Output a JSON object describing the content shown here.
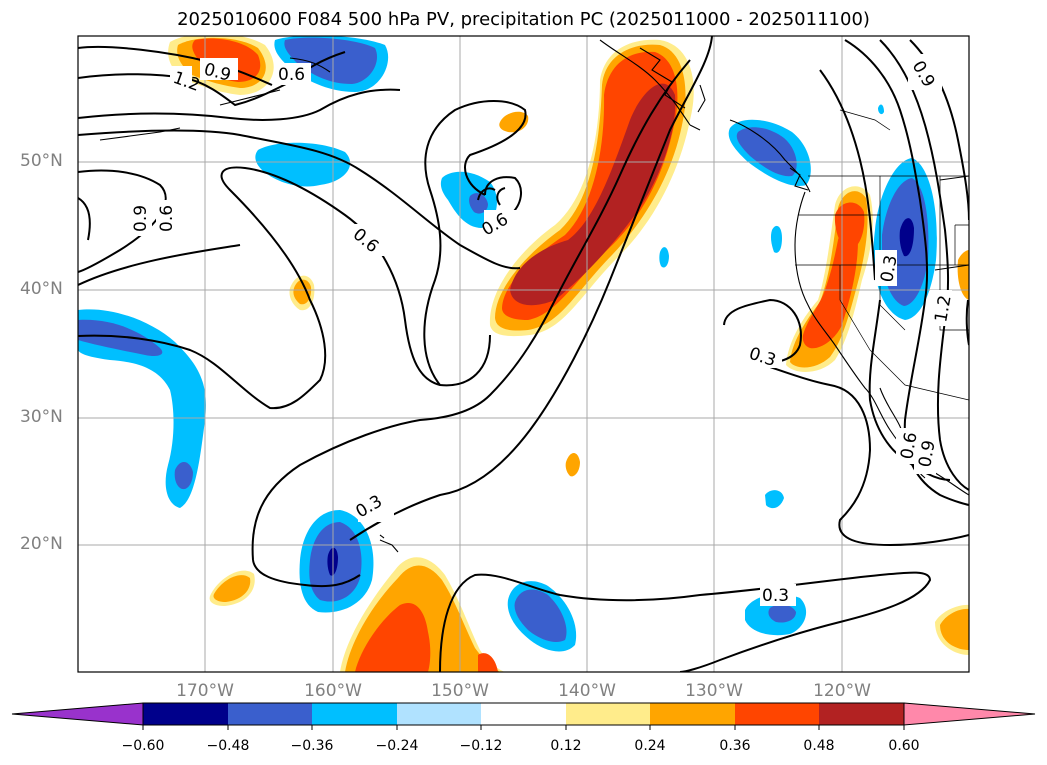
{
  "title": "2025010600 F084 500 hPa PV, precipitation PC (2025011000 - 2025011100)",
  "map": {
    "lat_labels": [
      "50°N",
      "40°N",
      "30°N",
      "20°N"
    ],
    "lon_labels": [
      "170°W",
      "160°W",
      "150°W",
      "140°W",
      "130°W",
      "120°W"
    ],
    "contour_labels": [
      "0.9",
      "1.2",
      "0.6",
      "0.9",
      "0.6",
      "0.6",
      "0.6",
      "0.3",
      "0.3",
      "0.3",
      "0.9",
      "0.3",
      "1.2",
      "0.6",
      "0.9"
    ],
    "gridlines": true
  },
  "colorbar": {
    "ticks": [
      "−0.60",
      "−0.48",
      "−0.36",
      "−0.24",
      "−0.12",
      "0.12",
      "0.24",
      "0.36",
      "0.48",
      "0.60"
    ],
    "colors": [
      "#9932cc",
      "#00008b",
      "#3a5fcd",
      "#00bfff",
      "#b0e2ff",
      "#ffffff",
      "#ffec8b",
      "#ffa500",
      "#ff4500",
      "#b22222",
      "#ff88aa"
    ]
  }
}
